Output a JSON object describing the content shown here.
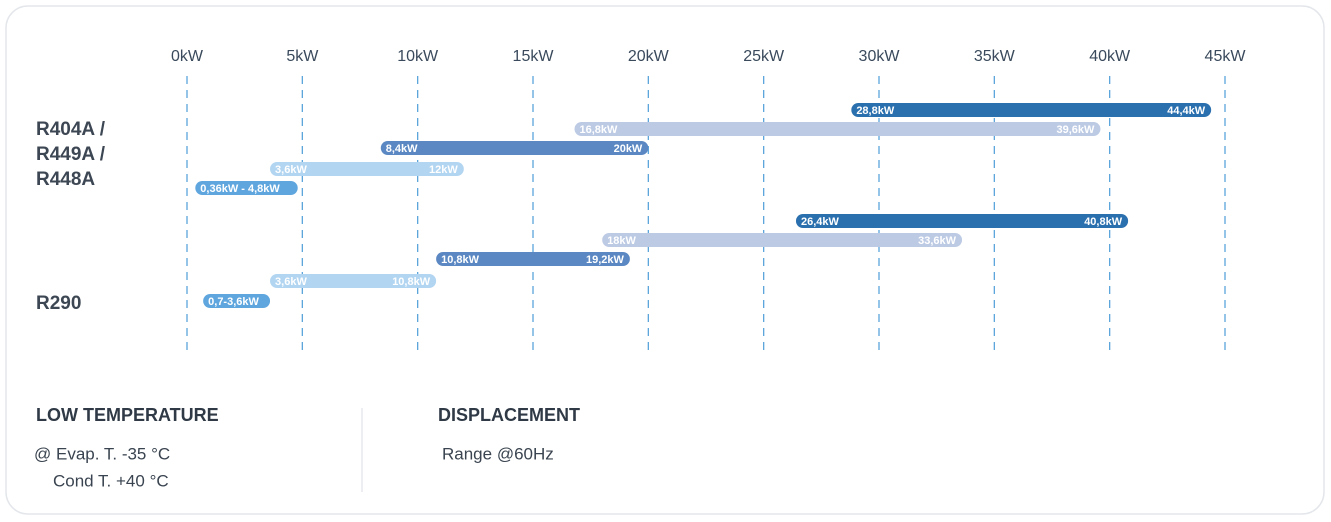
{
  "chart_data": {
    "type": "range_bar",
    "xticks": [
      {
        "value": 0,
        "label": "0kW"
      },
      {
        "value": 5,
        "label": "5kW"
      },
      {
        "value": 10,
        "label": "10kW"
      },
      {
        "value": 15,
        "label": "15kW"
      },
      {
        "value": 20,
        "label": "20kW"
      },
      {
        "value": 25,
        "label": "25kW"
      },
      {
        "value": 30,
        "label": "30kW"
      },
      {
        "value": 35,
        "label": "35kW"
      },
      {
        "value": 40,
        "label": "40kW"
      },
      {
        "value": 45,
        "label": "45kW"
      }
    ],
    "xlim": [
      0,
      45
    ],
    "grid": true,
    "groups": [
      {
        "label": [
          "R404A /",
          "R449A /",
          "R448A"
        ],
        "bars": [
          {
            "start": 28.8,
            "end": 44.4,
            "labels": [
              "28,8kW",
              "44,4kW"
            ],
            "color": "#2b70ae"
          },
          {
            "start": 16.8,
            "end": 39.6,
            "labels": [
              "16,8kW",
              "39,6kW"
            ],
            "color": "#bccae4"
          },
          {
            "start": 8.4,
            "end": 20,
            "labels": [
              "8,4kW",
              "20kW"
            ],
            "color": "#5b88c2"
          },
          {
            "start": 3.6,
            "end": 12,
            "labels": [
              "3,6kW",
              "12kW"
            ],
            "color": "#b2d5f1"
          },
          {
            "start": 0.36,
            "end": 4.8,
            "labels": [
              "0,36kW - 4,8kW"
            ],
            "color": "#5fa6de"
          }
        ]
      },
      {
        "label": [
          "R290"
        ],
        "bars": [
          {
            "start": 26.4,
            "end": 40.8,
            "labels": [
              "26,4kW",
              "40,8kW"
            ],
            "color": "#2b70ae"
          },
          {
            "start": 18,
            "end": 33.6,
            "labels": [
              "18kW",
              "33,6kW"
            ],
            "color": "#bccae4"
          },
          {
            "start": 10.8,
            "end": 19.2,
            "labels": [
              "10,8kW",
              "19,2kW"
            ],
            "color": "#5b88c2"
          },
          {
            "start": 3.6,
            "end": 10.8,
            "labels": [
              "3,6kW",
              "10,8kW"
            ],
            "color": "#b2d5f1"
          },
          {
            "start": 0.7,
            "end": 3.6,
            "labels": [
              "0,7-3,6kW"
            ],
            "color": "#5fa6de"
          }
        ]
      }
    ]
  },
  "notes": {
    "left_title": "LOW TEMPERATURE",
    "left_lines": [
      "@  Evap. T. -35 °C",
      "Cond T. +40 °C"
    ],
    "right_title": "DISPLACEMENT",
    "right_line": "Range @60Hz"
  }
}
